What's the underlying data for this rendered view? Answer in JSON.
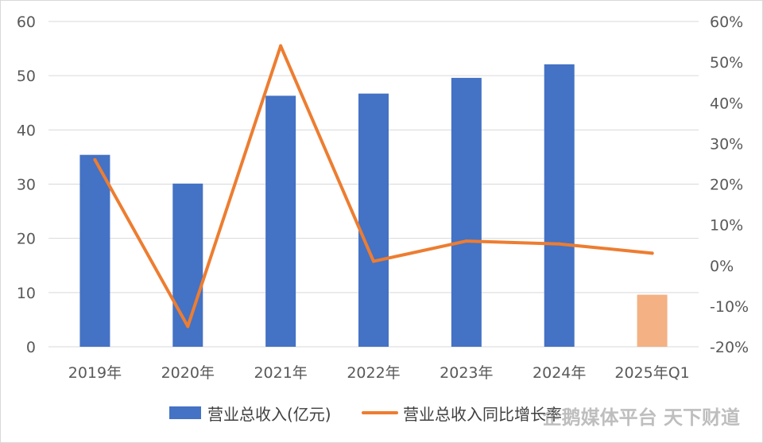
{
  "chart_data": {
    "type": "bar",
    "categories": [
      "2019年",
      "2020年",
      "2021年",
      "2022年",
      "2023年",
      "2024年",
      "2025年Q1"
    ],
    "series": [
      {
        "name": "营业总收入(亿元)",
        "type": "bar",
        "axis": "left",
        "values": [
          35.4,
          30.1,
          46.3,
          46.7,
          49.6,
          52.1,
          9.6
        ],
        "colors": [
          "#4472c4",
          "#4472c4",
          "#4472c4",
          "#4472c4",
          "#4472c4",
          "#4472c4",
          "#f4b183"
        ]
      },
      {
        "name": "营业总收入同比增长率",
        "type": "line",
        "axis": "right",
        "values": [
          26,
          -15,
          54,
          1,
          6,
          5.3,
          3
        ],
        "color": "#ed7d31"
      }
    ],
    "y_left": {
      "min": 0,
      "max": 60,
      "step": 10,
      "ticks": [
        "0",
        "10",
        "20",
        "30",
        "40",
        "50",
        "60"
      ]
    },
    "y_right": {
      "min": -20,
      "max": 60,
      "step": 10,
      "ticks": [
        "-20%",
        "-10%",
        "0%",
        "10%",
        "20%",
        "30%",
        "40%",
        "50%",
        "60%"
      ]
    },
    "grid": true,
    "legend": "bottom",
    "watermark": "企鹅媒体平台 天下财道"
  }
}
